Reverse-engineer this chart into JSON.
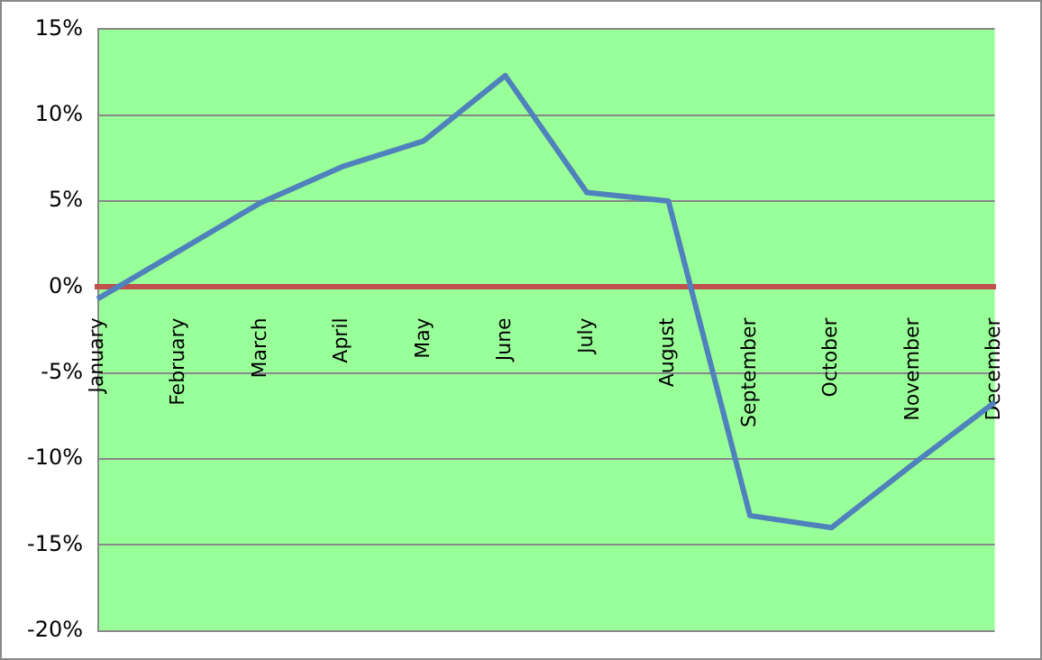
{
  "chart_data": {
    "type": "line",
    "categories": [
      "January",
      "February",
      "March",
      "April",
      "May",
      "June",
      "July",
      "August",
      "September",
      "October",
      "November",
      "December"
    ],
    "series": [
      {
        "color": "#4f81bd",
        "values": [
          -0.7,
          2.1,
          4.9,
          7.0,
          8.5,
          12.3,
          5.5,
          5.0,
          -13.3,
          -14.0,
          -10.3,
          -6.7
        ]
      }
    ],
    "ylim": [
      -20,
      15
    ],
    "yticks": [
      {
        "value": -20,
        "label": "-20%"
      },
      {
        "value": -15,
        "label": "-15%"
      },
      {
        "value": -10,
        "label": "-10%"
      },
      {
        "value": -5,
        "label": "-5%"
      },
      {
        "value": 0,
        "label": "0%"
      },
      {
        "value": 5,
        "label": "5%"
      },
      {
        "value": 10,
        "label": "10%"
      },
      {
        "value": 15,
        "label": "15%"
      }
    ],
    "grid": "y",
    "legend": false,
    "marker": "none",
    "line_style": "solid"
  }
}
